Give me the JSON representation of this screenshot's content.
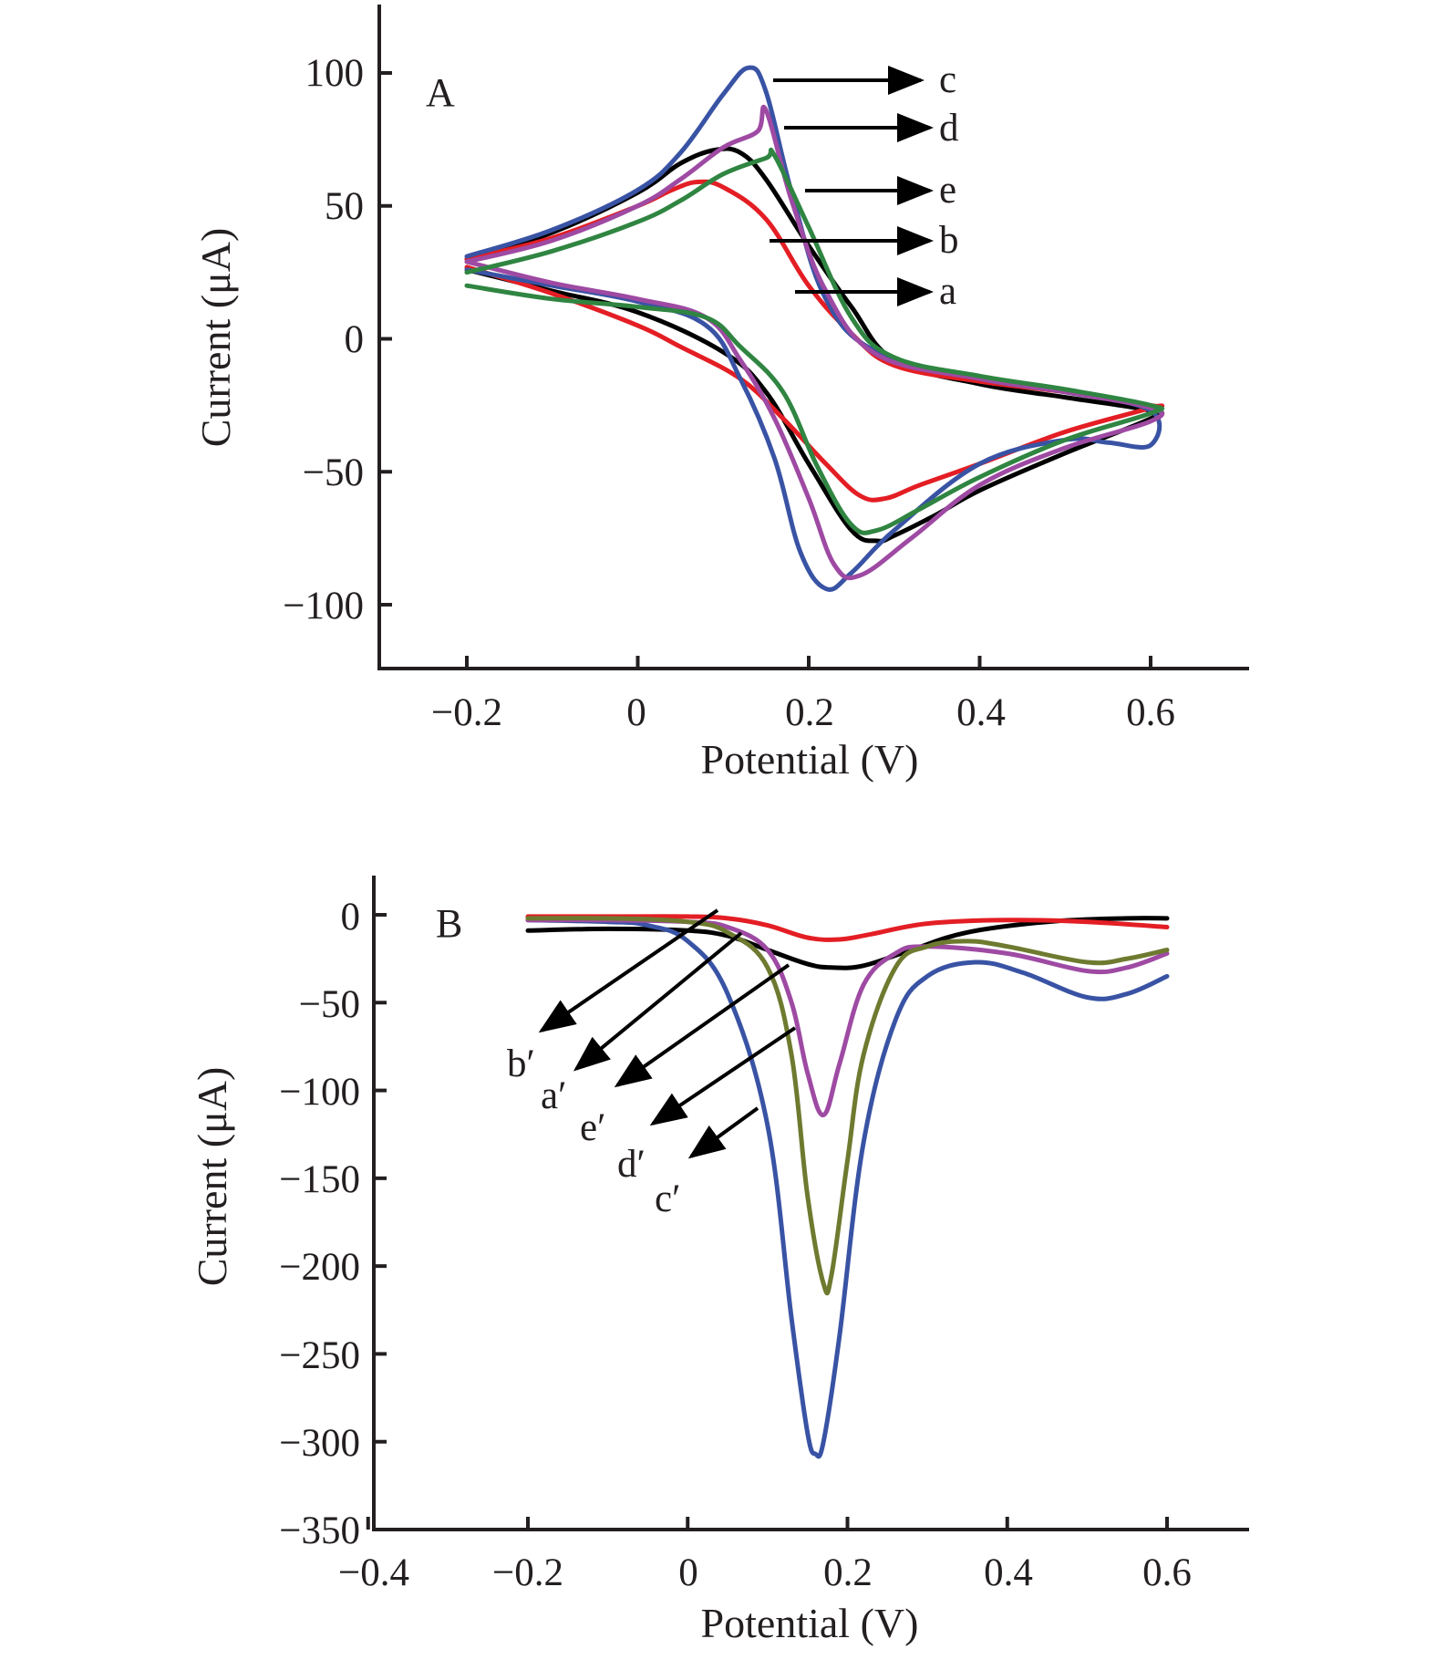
{
  "chart_data": [
    {
      "panel": "A",
      "type": "line",
      "title": "A",
      "xlabel": "Potential (V)",
      "ylabel": "Current (μA)",
      "xlim": [
        -0.3,
        0.7
      ],
      "ylim": [
        -125,
        125
      ],
      "xticks": [
        -0.2,
        0,
        0.2,
        0.4,
        0.6
      ],
      "xtick_labels": [
        "−0.2",
        "0",
        "0.2",
        "0.4",
        "0.6"
      ],
      "yticks": [
        100,
        50,
        0,
        -50,
        -100
      ],
      "ytick_labels": [
        "100",
        "50",
        "0",
        "−50",
        "−100"
      ],
      "grid": false,
      "series": [
        {
          "name": "a",
          "color": "#000000",
          "x": [
            -0.2,
            -0.1,
            0.0,
            0.05,
            0.09,
            0.12,
            0.15,
            0.2,
            0.25,
            0.3,
            0.4,
            0.5,
            0.6,
            0.6,
            0.5,
            0.4,
            0.35,
            0.3,
            0.28,
            0.25,
            0.2,
            0.15,
            0.1,
            0.0,
            -0.1,
            -0.2
          ],
          "y": [
            30,
            40,
            55,
            66,
            71,
            70,
            60,
            35,
            12,
            -8,
            -17,
            -22,
            -27,
            -30,
            -43,
            -57,
            -66,
            -74,
            -76,
            -72,
            -47,
            -20,
            -5,
            10,
            18,
            26
          ]
        },
        {
          "name": "b",
          "color": "#e31e24",
          "x": [
            -0.2,
            -0.1,
            0.0,
            0.04,
            0.07,
            0.1,
            0.15,
            0.2,
            0.25,
            0.3,
            0.4,
            0.5,
            0.6,
            0.6,
            0.5,
            0.4,
            0.33,
            0.29,
            0.26,
            0.22,
            0.17,
            0.12,
            0.05,
            0.0,
            -0.1,
            -0.2
          ],
          "y": [
            30,
            38,
            50,
            56,
            59,
            57,
            45,
            20,
            2,
            -10,
            -16,
            -20,
            -25,
            -26,
            -35,
            -47,
            -55,
            -60,
            -59,
            -47,
            -30,
            -15,
            -3,
            5,
            17,
            27
          ]
        },
        {
          "name": "c",
          "color": "#3953a4",
          "x": [
            -0.2,
            -0.1,
            0.0,
            0.05,
            0.1,
            0.13,
            0.15,
            0.18,
            0.22,
            0.28,
            0.4,
            0.5,
            0.6,
            0.6,
            0.55,
            0.5,
            0.4,
            0.3,
            0.25,
            0.22,
            0.19,
            0.16,
            0.12,
            0.08,
            0.0,
            -0.1,
            -0.2
          ],
          "y": [
            31,
            41,
            56,
            70,
            92,
            102,
            93,
            55,
            15,
            -5,
            -15,
            -20,
            -27,
            -40,
            -39,
            -38,
            -47,
            -72,
            -88,
            -94,
            -80,
            -45,
            -15,
            5,
            14,
            20,
            26
          ]
        },
        {
          "name": "d",
          "color": "#9e4aa3",
          "x": [
            -0.2,
            -0.1,
            0.0,
            0.05,
            0.1,
            0.14,
            0.15,
            0.18,
            0.22,
            0.28,
            0.4,
            0.5,
            0.6,
            0.6,
            0.5,
            0.4,
            0.32,
            0.26,
            0.23,
            0.2,
            0.16,
            0.12,
            0.08,
            0.0,
            -0.1,
            -0.2
          ],
          "y": [
            29,
            37,
            50,
            60,
            72,
            78,
            86,
            52,
            18,
            -6,
            -15,
            -20,
            -26,
            -31,
            -41,
            -55,
            -75,
            -89,
            -85,
            -60,
            -30,
            -8,
            8,
            15,
            21,
            29
          ]
        },
        {
          "name": "e",
          "color": "#2f8541",
          "x": [
            -0.2,
            -0.1,
            0.0,
            0.05,
            0.1,
            0.15,
            0.16,
            0.2,
            0.25,
            0.3,
            0.4,
            0.5,
            0.6,
            0.6,
            0.5,
            0.4,
            0.33,
            0.28,
            0.25,
            0.21,
            0.17,
            0.12,
            0.08,
            0.0,
            -0.1,
            -0.2
          ],
          "y": [
            25,
            33,
            44,
            52,
            62,
            68,
            69,
            42,
            8,
            -7,
            -14,
            -19,
            -25,
            -28,
            -38,
            -52,
            -64,
            -72,
            -70,
            -48,
            -20,
            -3,
            8,
            12,
            15,
            20
          ]
        }
      ],
      "annotations": [
        {
          "label": "c",
          "target_series": "c"
        },
        {
          "label": "d",
          "target_series": "d"
        },
        {
          "label": "e",
          "target_series": "e"
        },
        {
          "label": "b",
          "target_series": "b"
        },
        {
          "label": "a",
          "target_series": "a"
        }
      ]
    },
    {
      "panel": "B",
      "type": "line",
      "title": "B",
      "xlabel": "Potential (V)",
      "ylabel": "Current (μA)",
      "xlim": [
        -0.4,
        0.7
      ],
      "ylim": [
        -350,
        22
      ],
      "xticks": [
        -0.4,
        -0.2,
        0,
        0.2,
        0.4,
        0.6
      ],
      "xtick_labels": [
        "−0.4",
        "−0.2",
        "0",
        "0.2",
        "0.4",
        "0.6"
      ],
      "yticks": [
        0,
        -50,
        -100,
        -150,
        -200,
        -250,
        -300,
        -350
      ],
      "ytick_labels": [
        "0",
        "−50",
        "−100",
        "−150",
        "−200",
        "−250",
        "−300",
        "−350"
      ],
      "grid": false,
      "series": [
        {
          "name": "a′",
          "color": "#000000",
          "x": [
            -0.2,
            -0.1,
            0.0,
            0.05,
            0.1,
            0.15,
            0.18,
            0.22,
            0.28,
            0.35,
            0.45,
            0.55,
            0.6
          ],
          "y": [
            -9,
            -8,
            -9,
            -12,
            -20,
            -28,
            -30,
            -29,
            -20,
            -10,
            -4,
            -2,
            -2
          ]
        },
        {
          "name": "b′",
          "color": "#e31e24",
          "x": [
            -0.2,
            -0.1,
            0.0,
            0.05,
            0.1,
            0.15,
            0.19,
            0.23,
            0.3,
            0.4,
            0.5,
            0.6
          ],
          "y": [
            -1,
            -1,
            -1,
            -2,
            -6,
            -13,
            -14,
            -11,
            -5,
            -3,
            -4,
            -7
          ]
        },
        {
          "name": "c′",
          "color": "#3953a4",
          "x": [
            -0.2,
            -0.1,
            -0.05,
            0.0,
            0.05,
            0.1,
            0.13,
            0.15,
            0.16,
            0.17,
            0.19,
            0.22,
            0.26,
            0.3,
            0.36,
            0.42,
            0.5,
            0.55,
            0.6
          ],
          "y": [
            -3,
            -4,
            -6,
            -15,
            -45,
            -120,
            -230,
            -295,
            -307,
            -300,
            -240,
            -130,
            -60,
            -35,
            -27,
            -33,
            -47,
            -45,
            -35
          ]
        },
        {
          "name": "d′",
          "color": "#9e4aa3",
          "x": [
            -0.2,
            -0.1,
            0.0,
            0.05,
            0.1,
            0.13,
            0.15,
            0.17,
            0.19,
            0.22,
            0.26,
            0.3,
            0.4,
            0.5,
            0.55,
            0.6
          ],
          "y": [
            -3,
            -3,
            -4,
            -7,
            -20,
            -50,
            -90,
            -114,
            -85,
            -40,
            -22,
            -18,
            -22,
            -32,
            -30,
            -22
          ]
        },
        {
          "name": "e′",
          "color": "#6e7a2f",
          "x": [
            -0.2,
            -0.1,
            0.0,
            0.05,
            0.1,
            0.13,
            0.15,
            0.17,
            0.18,
            0.2,
            0.22,
            0.26,
            0.3,
            0.35,
            0.4,
            0.5,
            0.55,
            0.6
          ],
          "y": [
            -2,
            -2,
            -4,
            -10,
            -30,
            -80,
            -160,
            -210,
            -205,
            -140,
            -80,
            -30,
            -18,
            -15,
            -18,
            -27,
            -25,
            -20
          ]
        }
      ],
      "annotations": [
        {
          "label": "b′",
          "target_series": "b′"
        },
        {
          "label": "a′",
          "target_series": "a′"
        },
        {
          "label": "e′",
          "target_series": "e′"
        },
        {
          "label": "d′",
          "target_series": "d′"
        },
        {
          "label": "c′",
          "target_series": "c′"
        }
      ]
    }
  ]
}
